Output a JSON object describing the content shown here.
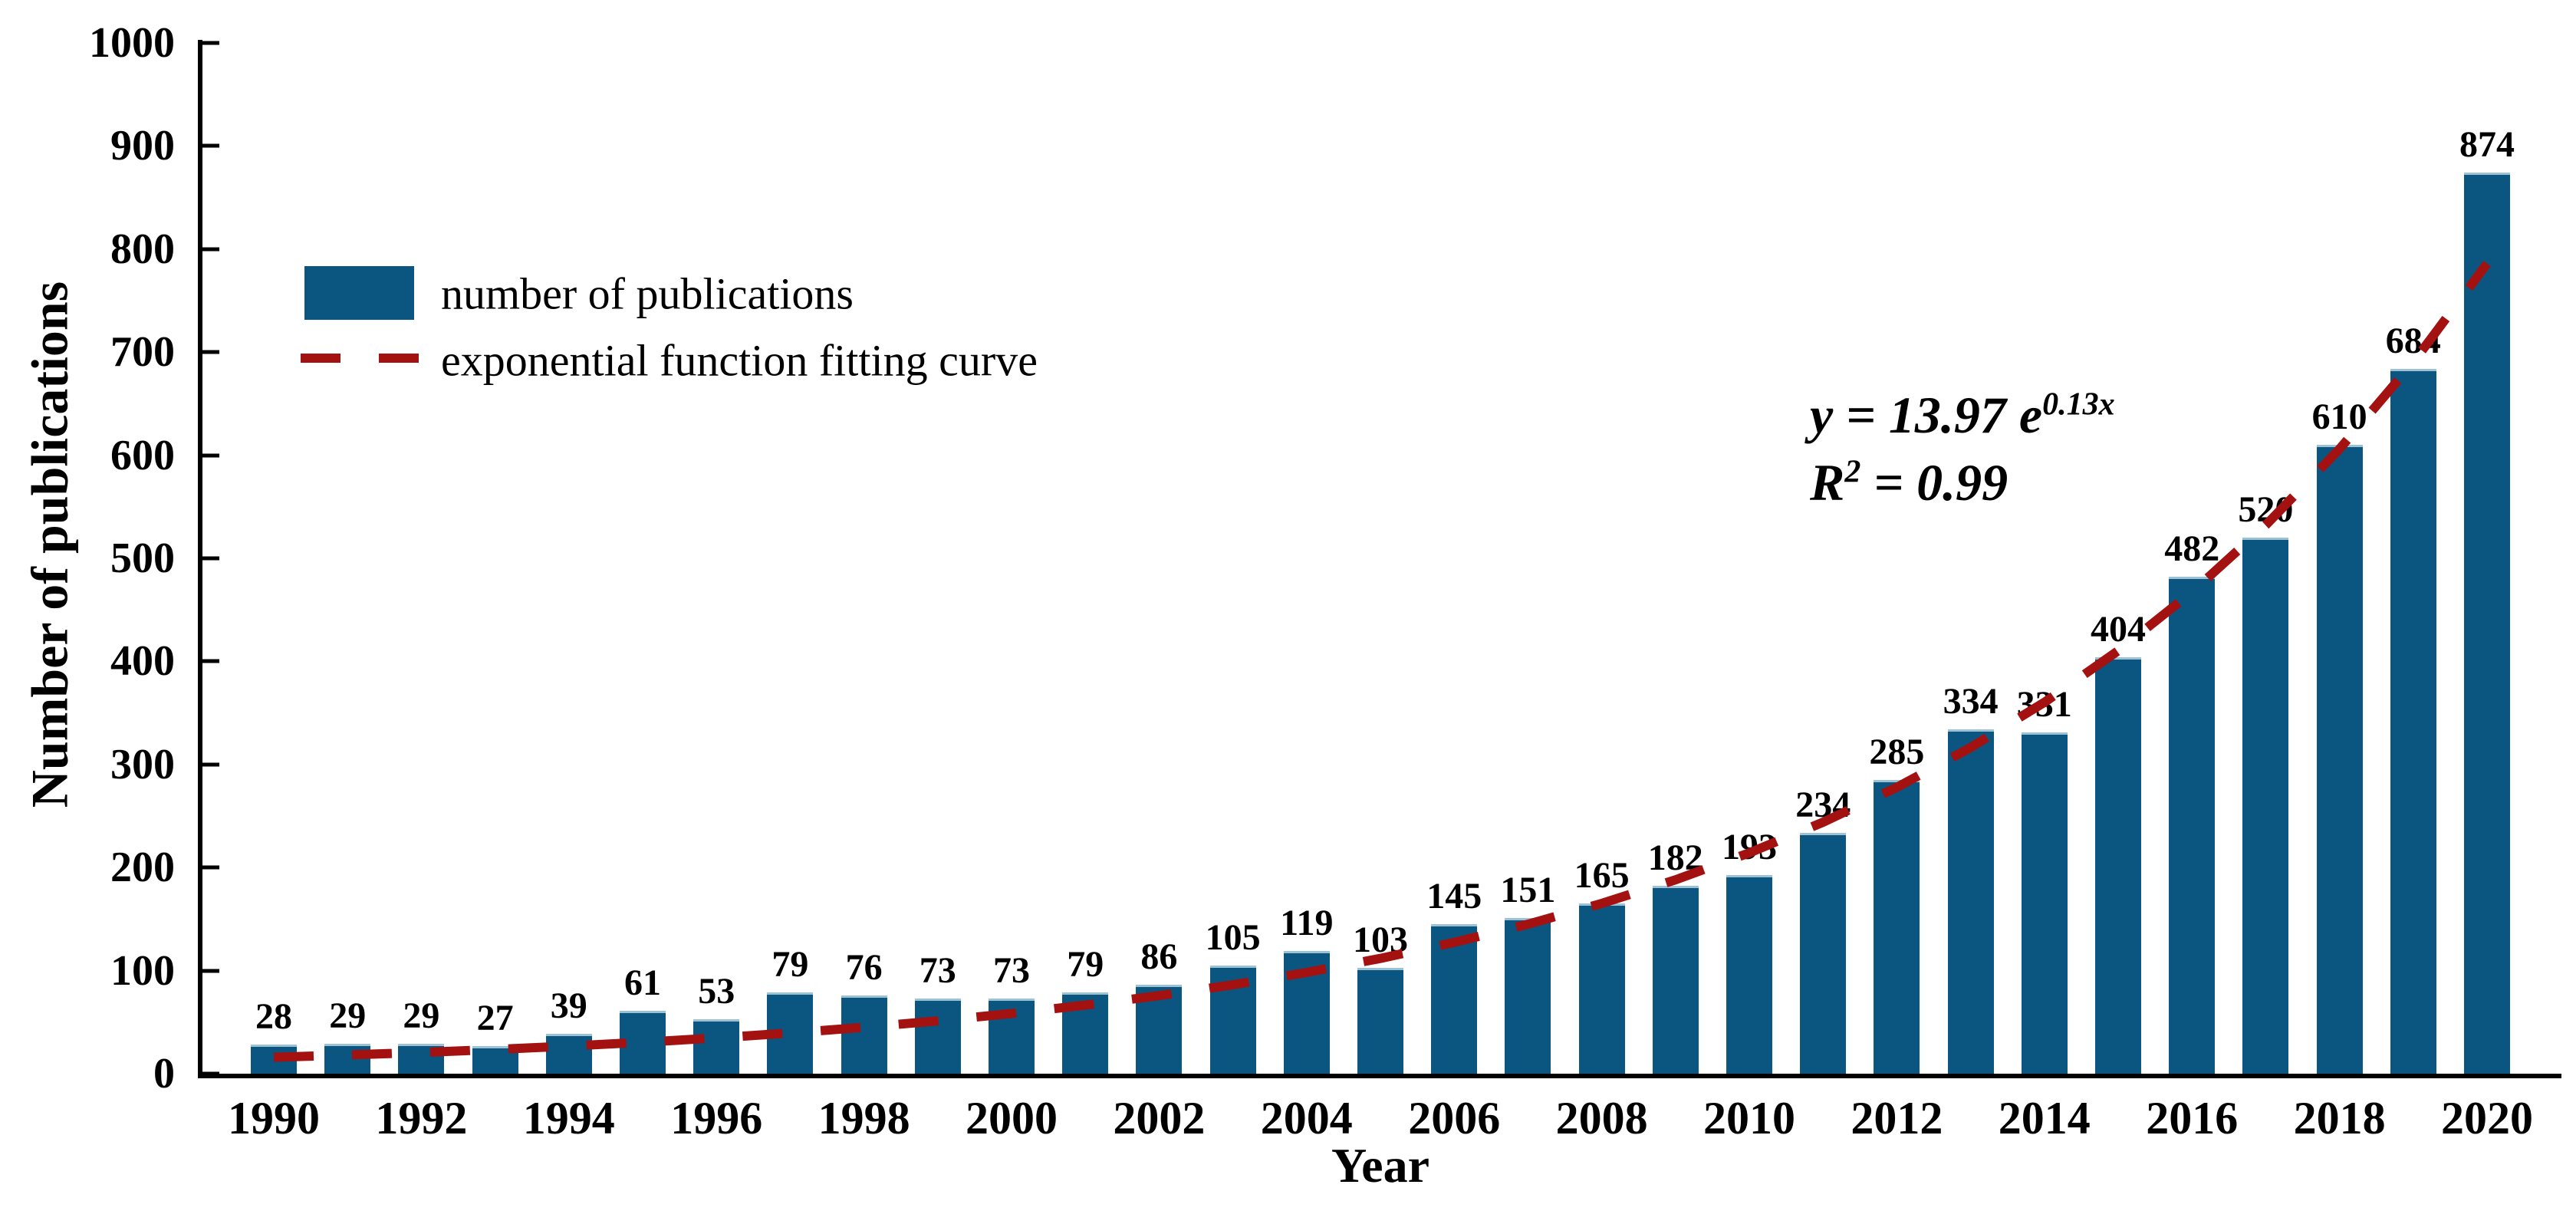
{
  "figure": {
    "y_axis_title": "Number of publications",
    "x_axis_title": "Year"
  },
  "legend": {
    "bar_label": "number of publications",
    "line_label": "exponential function fitting curve"
  },
  "equation": {
    "line1_base": "y = 13.97 e",
    "line1_sup": "0.13x",
    "line2_base": "R",
    "line2_sup": "2",
    "line2_rest": " = 0.99"
  },
  "colors": {
    "bar": "#0A5680",
    "bar_top_edge": "#9CC2D3",
    "fit_line": "#A31111",
    "axis": "#000000",
    "text": "#000000"
  },
  "chart_data": {
    "type": "bar",
    "title": "",
    "xlabel": "Year",
    "ylabel": "Number of publications",
    "categories": [
      1990,
      1991,
      1992,
      1993,
      1994,
      1995,
      1996,
      1997,
      1998,
      1999,
      2000,
      2001,
      2002,
      2003,
      2004,
      2005,
      2006,
      2007,
      2008,
      2009,
      2010,
      2011,
      2012,
      2013,
      2014,
      2015,
      2016,
      2017,
      2018,
      2019,
      2020
    ],
    "values": [
      28,
      29,
      29,
      27,
      39,
      61,
      53,
      79,
      76,
      73,
      73,
      79,
      86,
      105,
      119,
      103,
      145,
      151,
      165,
      182,
      193,
      234,
      285,
      334,
      331,
      404,
      482,
      520,
      610,
      684,
      874
    ],
    "series": [
      {
        "name": "number of publications",
        "type": "bar",
        "values": [
          28,
          29,
          29,
          27,
          39,
          61,
          53,
          79,
          76,
          73,
          73,
          79,
          86,
          105,
          119,
          103,
          145,
          151,
          165,
          182,
          193,
          234,
          285,
          334,
          331,
          404,
          482,
          520,
          610,
          684,
          874
        ]
      },
      {
        "name": "exponential function fitting curve",
        "type": "line",
        "style": "dashed",
        "fit": {
          "model": "y = a*e^(b*x)",
          "a": 13.97,
          "b": 0.13,
          "x_definition": "year index, 1990 = 1",
          "r_squared": 0.99
        }
      }
    ],
    "ylim": [
      0,
      1000
    ],
    "yticks": [
      0,
      100,
      200,
      300,
      400,
      500,
      600,
      700,
      800,
      900,
      1000
    ],
    "xtick_labels": [
      "1990",
      "1992",
      "1994",
      "1996",
      "1998",
      "2000",
      "2002",
      "2004",
      "2006",
      "2008",
      "2010",
      "2012",
      "2014",
      "2016",
      "2018",
      "2020"
    ],
    "bar_value_labels_shown": true,
    "grid": false,
    "legend_position": "upper left",
    "annotations": [
      "y = 13.97 e^0.13x",
      "R² = 0.99"
    ]
  }
}
